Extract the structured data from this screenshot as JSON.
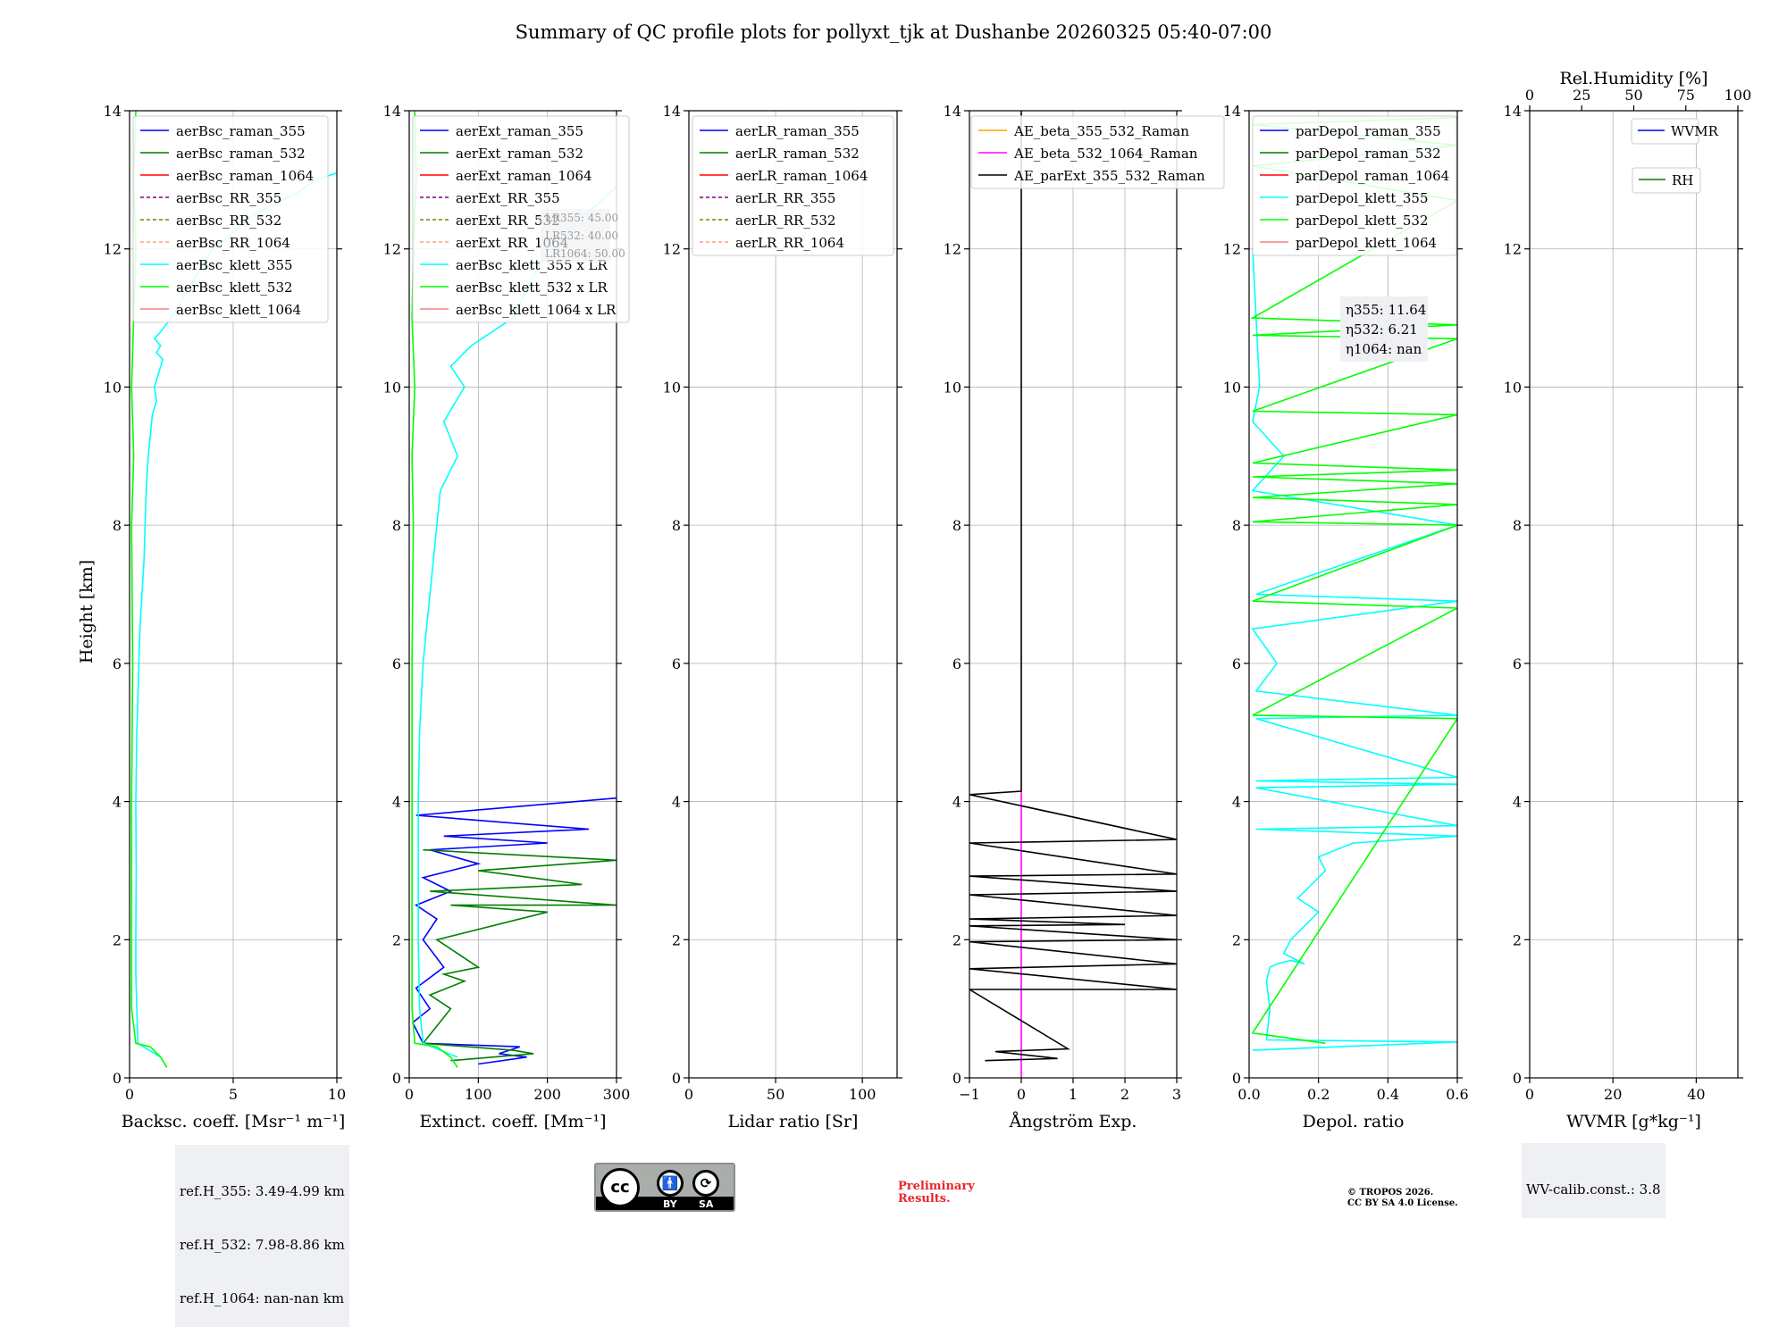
{
  "title": "Summary of QC profile plots for pollyxt_tjk at Dushanbe 20260325 05:40-07:00",
  "y_axis_label": "Height [km]",
  "colors": {
    "blue": "#0000ff",
    "green": "#007f00",
    "red": "#ff0000",
    "purple": "#800080",
    "olive": "#808000",
    "salmon": "#ffa07a",
    "cyan": "#00ffff",
    "lime": "#00ff00",
    "lightcoral": "#f08080",
    "orange": "#ffa500",
    "magenta": "#ff00ff",
    "black": "#000000"
  },
  "ref_heights": {
    "line1": "ref.H_355: 3.49-4.99 km",
    "line2": "ref.H_532: 7.98-8.86 km",
    "line3": "ref.H_1064: nan-nan km"
  },
  "lidar_ratio_box": {
    "line1": "LR355: 45.00",
    "line2": "LR532: 40.00",
    "line3": "LR1064: 50.00"
  },
  "eta_box": {
    "line1": "η355: 11.64",
    "line2": "η532: 6.21",
    "line3": "η1064: nan"
  },
  "wv_calib": "WV-calib.const.: 3.8",
  "license": {
    "badge_cc": "cc",
    "badge_by": "BY",
    "badge_sa": "SA",
    "prelim_line1": "Preliminary",
    "prelim_line2": "Results.",
    "copyright_line1": "© TROPOS 2026.",
    "copyright_line2": "CC BY SA 4.0 License."
  },
  "chart_data": [
    {
      "type": "line",
      "id": "backscatter",
      "xlabel": "Backsc. coeff. [Msr⁻¹ m⁻¹]",
      "ylabel": "Height [km]",
      "xlim": [
        0,
        10
      ],
      "ylim": [
        0,
        14
      ],
      "xticks": [
        0,
        5,
        10
      ],
      "yticks": [
        0,
        2,
        4,
        6,
        8,
        10,
        12,
        14
      ],
      "legend_position": "top-left",
      "legend": [
        {
          "label": "aerBsc_raman_355",
          "color": "blue",
          "dash": false
        },
        {
          "label": "aerBsc_raman_532",
          "color": "green",
          "dash": false
        },
        {
          "label": "aerBsc_raman_1064",
          "color": "red",
          "dash": false
        },
        {
          "label": "aerBsc_RR_355",
          "color": "purple",
          "dash": true
        },
        {
          "label": "aerBsc_RR_532",
          "color": "olive",
          "dash": true
        },
        {
          "label": "aerBsc_RR_1064",
          "color": "salmon",
          "dash": true
        },
        {
          "label": "aerBsc_klett_355",
          "color": "cyan",
          "dash": false
        },
        {
          "label": "aerBsc_klett_532",
          "color": "lime",
          "dash": false
        },
        {
          "label": "aerBsc_klett_1064",
          "color": "lightcoral",
          "dash": false
        }
      ],
      "series": [
        {
          "name": "aerBsc_klett_355",
          "color": "cyan",
          "x": [
            1.5,
            0.4,
            0.35,
            0.3,
            0.3,
            0.32,
            0.3,
            0.35,
            0.4,
            0.45,
            0.5,
            0.6,
            0.7,
            0.75,
            0.8,
            0.9,
            1.0,
            1.1,
            1.3,
            1.2,
            1.4,
            1.6,
            1.3,
            1.5,
            1.2,
            1.5,
            2.0,
            3.0,
            4.0,
            6.0,
            8.0,
            9.0,
            10.0
          ],
          "y": [
            0.3,
            0.5,
            1.0,
            1.5,
            2.0,
            3.0,
            4.0,
            5.0,
            5.5,
            6.0,
            6.5,
            7.0,
            7.5,
            8.0,
            8.5,
            9.0,
            9.3,
            9.6,
            9.8,
            10.0,
            10.2,
            10.4,
            10.5,
            10.6,
            10.7,
            10.8,
            11.0,
            11.5,
            12.0,
            12.5,
            12.8,
            13.0,
            13.1
          ]
        },
        {
          "name": "aerBsc_klett_532",
          "color": "lime",
          "x": [
            1.8,
            1.5,
            1.0,
            0.3,
            0.1,
            0.1,
            0.1,
            0.1,
            0.15,
            0.1,
            0.2,
            0.1,
            0.2,
            0.3,
            0.2,
            0.3
          ],
          "y": [
            0.15,
            0.3,
            0.45,
            0.5,
            1.0,
            2.0,
            3.0,
            4.0,
            6.0,
            8.0,
            9.0,
            10.0,
            11.0,
            12.0,
            13.0,
            14.0
          ]
        }
      ]
    },
    {
      "type": "line",
      "id": "extinction",
      "xlabel": "Extinct. coeff. [Mm⁻¹]",
      "xlim": [
        0,
        300
      ],
      "ylim": [
        0,
        14
      ],
      "xticks": [
        0,
        100,
        200,
        300
      ],
      "yticks": [
        0,
        2,
        4,
        6,
        8,
        10,
        12,
        14
      ],
      "legend_position": "top-left",
      "legend": [
        {
          "label": "aerExt_raman_355",
          "color": "blue",
          "dash": false
        },
        {
          "label": "aerExt_raman_532",
          "color": "green",
          "dash": false
        },
        {
          "label": "aerExt_raman_1064",
          "color": "red",
          "dash": false
        },
        {
          "label": "aerExt_RR_355",
          "color": "purple",
          "dash": true
        },
        {
          "label": "aerExt_RR_532",
          "color": "olive",
          "dash": true
        },
        {
          "label": "aerExt_RR_1064",
          "color": "salmon",
          "dash": true
        },
        {
          "label": "aerBsc_klett_355 x LR",
          "color": "cyan",
          "dash": false
        },
        {
          "label": "aerBsc_klett_532 x LR",
          "color": "lime",
          "dash": false
        },
        {
          "label": "aerBsc_klett_1064 x LR",
          "color": "lightcoral",
          "dash": false
        }
      ],
      "series": [
        {
          "name": "aerExt_raman_355",
          "color": "blue",
          "x": [
            100,
            170,
            130,
            160,
            20,
            5,
            30,
            10,
            50,
            20,
            40,
            10,
            60,
            20,
            100,
            30,
            200,
            50,
            260,
            10,
            300
          ],
          "y": [
            0.2,
            0.3,
            0.35,
            0.45,
            0.5,
            0.8,
            1.0,
            1.3,
            1.6,
            2.0,
            2.3,
            2.5,
            2.7,
            2.9,
            3.1,
            3.3,
            3.4,
            3.5,
            3.6,
            3.8,
            4.05
          ]
        },
        {
          "name": "aerExt_raman_532",
          "color": "green",
          "x": [
            60,
            180,
            150,
            20,
            60,
            30,
            80,
            50,
            100,
            40,
            200,
            60,
            300,
            30,
            250,
            100,
            300,
            20
          ],
          "y": [
            0.25,
            0.35,
            0.4,
            0.5,
            1.0,
            1.2,
            1.4,
            1.5,
            1.6,
            2.0,
            2.4,
            2.5,
            2.5,
            2.7,
            2.8,
            3.0,
            3.15,
            3.3
          ]
        },
        {
          "name": "aerBsc_klett_355 x LR",
          "color": "cyan",
          "x": [
            70,
            20,
            15,
            13,
            13,
            13,
            15,
            20,
            25,
            30,
            35,
            40,
            45,
            70,
            50,
            80,
            60,
            90,
            150,
            200,
            300
          ],
          "y": [
            0.3,
            0.5,
            1.0,
            2.0,
            3.0,
            4.0,
            5.0,
            6.0,
            6.5,
            7.0,
            7.5,
            8.0,
            8.5,
            9.0,
            9.5,
            10.0,
            10.3,
            10.6,
            11.0,
            12.0,
            12.9
          ]
        },
        {
          "name": "aerBsc_klett_532 x LR",
          "color": "lime",
          "x": [
            70,
            60,
            40,
            8,
            4,
            4,
            4,
            4,
            6,
            4,
            8,
            4,
            6,
            10,
            8
          ],
          "y": [
            0.15,
            0.3,
            0.45,
            0.5,
            1.0,
            2.0,
            4.0,
            6.0,
            8.0,
            9.0,
            10.0,
            11.0,
            12.0,
            13.0,
            14.0
          ]
        }
      ]
    },
    {
      "type": "line",
      "id": "lidar_ratio",
      "xlabel": "Lidar ratio [Sr]",
      "xlim": [
        0,
        120
      ],
      "ylim": [
        0,
        14
      ],
      "xticks": [
        0,
        50,
        100
      ],
      "yticks": [
        0,
        2,
        4,
        6,
        8,
        10,
        12,
        14
      ],
      "legend_position": "top-left",
      "legend": [
        {
          "label": "aerLR_raman_355",
          "color": "blue",
          "dash": false
        },
        {
          "label": "aerLR_raman_532",
          "color": "green",
          "dash": false
        },
        {
          "label": "aerLR_raman_1064",
          "color": "red",
          "dash": false
        },
        {
          "label": "aerLR_RR_355",
          "color": "purple",
          "dash": true
        },
        {
          "label": "aerLR_RR_532",
          "color": "olive",
          "dash": true
        },
        {
          "label": "aerLR_RR_1064",
          "color": "salmon",
          "dash": true
        }
      ],
      "series": []
    },
    {
      "type": "line",
      "id": "angstrom",
      "xlabel": "Ångström Exp.",
      "xlim": [
        -1,
        3
      ],
      "ylim": [
        0,
        14
      ],
      "xticks": [
        -1,
        0,
        1,
        2,
        3
      ],
      "yticks": [
        0,
        2,
        4,
        6,
        8,
        10,
        12,
        14
      ],
      "legend_position": "top-left",
      "legend": [
        {
          "label": "AE_beta_355_532_Raman",
          "color": "orange",
          "dash": false
        },
        {
          "label": "AE_beta_532_1064_Raman",
          "color": "magenta",
          "dash": false
        },
        {
          "label": "AE_parExt_355_532_Raman",
          "color": "black",
          "dash": false
        }
      ],
      "series": [
        {
          "name": "AE_beta_532_1064_Raman",
          "color": "magenta",
          "x": [
            0,
            0
          ],
          "y": [
            0,
            4.15
          ]
        },
        {
          "name": "AE_parExt_355_532_Raman",
          "color": "black",
          "x": [
            -0.7,
            0.7,
            -0.5,
            0.9,
            -1,
            3,
            -1,
            3,
            -1,
            3,
            -1,
            2.0,
            -1,
            3,
            -1,
            3,
            -1,
            3,
            -1,
            3,
            -1,
            0,
            0,
            0
          ],
          "y": [
            0.25,
            0.28,
            0.38,
            0.42,
            1.28,
            1.28,
            1.58,
            1.65,
            1.97,
            2.0,
            2.2,
            2.22,
            2.3,
            2.35,
            2.65,
            2.7,
            2.92,
            2.95,
            3.4,
            3.45,
            4.1,
            4.15,
            4.2,
            14.0
          ]
        }
      ]
    },
    {
      "type": "line",
      "id": "depol",
      "xlabel": "Depol. ratio",
      "xlim": [
        0,
        0.6
      ],
      "ylim": [
        0,
        14
      ],
      "xticks": [
        0.0,
        0.2,
        0.4,
        0.6
      ],
      "yticks": [
        0,
        2,
        4,
        6,
        8,
        10,
        12,
        14
      ],
      "legend_position": "top-left",
      "legend": [
        {
          "label": "parDepol_raman_355",
          "color": "blue",
          "dash": false
        },
        {
          "label": "parDepol_raman_532",
          "color": "green",
          "dash": false
        },
        {
          "label": "parDepol_raman_1064",
          "color": "red",
          "dash": false
        },
        {
          "label": "parDepol_klett_355",
          "color": "cyan",
          "dash": false
        },
        {
          "label": "parDepol_klett_532",
          "color": "lime",
          "dash": false
        },
        {
          "label": "parDepol_klett_1064",
          "color": "lightcoral",
          "dash": false
        }
      ],
      "series": [
        {
          "name": "parDepol_klett_355",
          "color": "cyan",
          "x": [
            0.01,
            0.6,
            0.05,
            0.06,
            0.05,
            0.06,
            0.08,
            0.12,
            0.16,
            0.1,
            0.12,
            0.16,
            0.2,
            0.14,
            0.18,
            0.22,
            0.2,
            0.3,
            0.6,
            0.02,
            0.6,
            0.02,
            0.6,
            0.02,
            0.6,
            0.02,
            0.6,
            0.02,
            0.08,
            0.01,
            0.6,
            0.02,
            0.6,
            0.01,
            0.1,
            0.01,
            0.03,
            0.01
          ],
          "y": [
            0.4,
            0.52,
            0.55,
            1.0,
            1.4,
            1.6,
            1.65,
            1.7,
            1.65,
            1.8,
            2.0,
            2.2,
            2.4,
            2.6,
            2.8,
            3.0,
            3.2,
            3.4,
            3.5,
            3.6,
            3.65,
            4.2,
            4.25,
            4.3,
            4.35,
            5.2,
            5.25,
            5.6,
            6.0,
            6.5,
            6.9,
            7.0,
            8.0,
            8.5,
            9.0,
            9.5,
            10.0,
            12.0
          ]
        },
        {
          "name": "parDepol_klett_532",
          "color": "lime",
          "x": [
            0.22,
            0.01,
            0.6,
            0.01,
            0.6,
            0.01,
            0.6,
            0.01,
            0.6,
            0.01,
            0.6,
            0.01,
            0.6,
            0.01,
            0.6,
            0.01,
            0.6,
            0.01,
            0.6,
            0.01,
            0.6,
            0.01,
            0.6,
            0.01,
            0.6
          ],
          "y": [
            0.5,
            0.65,
            5.2,
            5.25,
            6.8,
            6.9,
            8.0,
            8.05,
            8.3,
            8.4,
            8.6,
            8.7,
            8.8,
            8.9,
            9.6,
            9.65,
            10.7,
            10.75,
            10.9,
            11.0,
            12.7,
            13.2,
            13.5,
            13.8,
            13.9
          ]
        }
      ]
    },
    {
      "type": "line",
      "id": "wvmr",
      "xlabel": "WVMR [g*kg⁻¹]",
      "xlabel_top": "Rel.Humidity [%]",
      "xlim": [
        0,
        50
      ],
      "xlim_top": [
        0,
        100
      ],
      "ylim": [
        0,
        14
      ],
      "xticks": [
        0,
        20,
        40
      ],
      "xticks_top": [
        0,
        25,
        50,
        75,
        100
      ],
      "yticks": [
        0,
        2,
        4,
        6,
        8,
        10,
        12,
        14
      ],
      "legend_position": "top-right",
      "legend": [
        {
          "label": "WVMR",
          "color": "blue",
          "dash": false
        },
        {
          "label": "RH",
          "color": "green",
          "dash": false
        }
      ],
      "series": []
    }
  ]
}
